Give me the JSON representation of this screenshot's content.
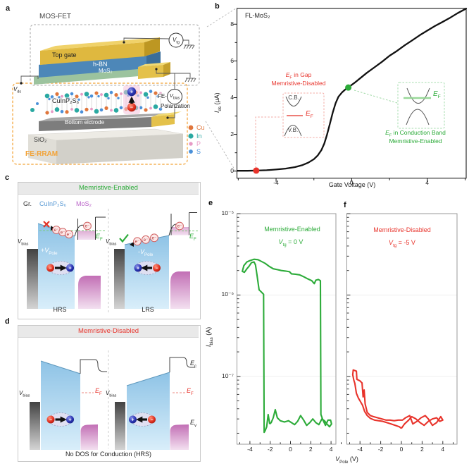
{
  "syms": {
    "E": "E",
    "F": "F",
    "V": "V",
    "I": "I",
    "ds": "ds",
    "tg": "tg",
    "bias": "bias",
    "Pole": "Pole",
    "plus": "+",
    "minus": "-",
    "plus_sign": "+",
    "minus_sign": "−",
    "electron": "e⁻"
  },
  "colors": {
    "green": "#2cab39",
    "red": "#e8332b",
    "orange": "#f2a235",
    "blue_label": "#5b9bd5",
    "purple_label": "#bb65c9",
    "curve_black": "#111111",
    "band_blue": "#93c6e6",
    "pink_band": "#c873ba",
    "atom_Cu": "#e0763c",
    "atom_In": "#2aa9a2",
    "atom_P": "#e79ac6",
    "atom_S": "#4a90d9"
  },
  "panels": {
    "a": {
      "letter": "a",
      "mosfet": "MOS-FET",
      "fe_rram": "FE-RRAM",
      "top_gate": "Top gate",
      "hbn": "h-BN",
      "mos2": "MoS₂",
      "cips": "CuInP₂S₆",
      "fe_line1": "FE-",
      "fe_line2": "Polarization",
      "bottom_electrode": "Bottom elctrode",
      "sio2": "SiO₂",
      "legend": [
        {
          "name": "Cu",
          "color": "#e0763c"
        },
        {
          "name": "In",
          "color": "#2aa9a2"
        },
        {
          "name": "P",
          "color": "#e79ac6"
        },
        {
          "name": "S",
          "color": "#4a90d9"
        }
      ]
    },
    "b": {
      "letter": "b",
      "red_ann": {
        "rest1": " in Gap",
        "line2": "Memristive-Disabled",
        "cb": "C.B.",
        "vb": "V.B."
      },
      "green_ann": {
        "rest1": " in Conduction Band",
        "line2": "Memristive-Enabled"
      }
    },
    "c": {
      "letter": "c",
      "header": "Memristive-Enabled",
      "legend_gr": "Gr.",
      "legend_cips": "CuInP₂S₆",
      "legend_mos2": "MoS₂",
      "hrs": "HRS",
      "lrs": "LRS",
      "hrs_sign": "+",
      "lrs_sign": "-"
    },
    "d": {
      "letter": "d",
      "header": "Memristive-Disabled",
      "caption": "No DOS for Conduction (HRS)",
      "ec_sub": "c",
      "ev_sub": "v"
    },
    "e": {
      "letter": "e",
      "cond_rest": " = 0 V",
      "ylabel_rest": " (A)"
    },
    "f": {
      "letter": "f",
      "cond_rest": " = -5 V",
      "xlabel_rest": " (V)"
    }
  },
  "chart_data": {
    "b": {
      "type": "line",
      "title": "FL-MoS₂",
      "xlabel": "Gate Voltage (V)",
      "ylabel": "Ids (μA)",
      "xlim": [
        -6.05,
        6.1
      ],
      "ylim": [
        -0.4,
        8.9
      ],
      "xticks": [
        -4,
        0,
        4
      ],
      "xtick_labels": [
        "-4",
        "0",
        "4"
      ],
      "xticks_minor": [
        -6,
        -2,
        2,
        6
      ],
      "yticks": [
        0,
        2,
        4,
        6,
        8
      ],
      "ytick_labels": [
        "0",
        "2",
        "4",
        "6",
        "8"
      ],
      "yticks_minor": [
        1,
        3,
        5,
        7
      ],
      "points": [
        [
          -6.05,
          0.02
        ],
        [
          -5.5,
          0.02
        ],
        [
          -5.05,
          0.03
        ],
        [
          -4.5,
          0.05
        ],
        [
          -4,
          0.09
        ],
        [
          -3.5,
          0.14
        ],
        [
          -3,
          0.22
        ],
        [
          -2.6,
          0.33
        ],
        [
          -2.3,
          0.46
        ],
        [
          -2,
          0.65
        ],
        [
          -1.8,
          0.85
        ],
        [
          -1.6,
          1.15
        ],
        [
          -1.45,
          1.5
        ],
        [
          -1.3,
          2
        ],
        [
          -1.15,
          2.6
        ],
        [
          -1,
          3.2
        ],
        [
          -0.85,
          3.7
        ],
        [
          -0.7,
          4.05
        ],
        [
          -0.5,
          4.3
        ],
        [
          -0.3,
          4.48
        ],
        [
          -0.1,
          4.62
        ],
        [
          0.2,
          4.85
        ],
        [
          0.5,
          5.1
        ],
        [
          0.8,
          5.35
        ],
        [
          1.2,
          5.65
        ],
        [
          1.6,
          5.95
        ],
        [
          2,
          6.28
        ],
        [
          2.4,
          6.55
        ],
        [
          2.8,
          6.85
        ],
        [
          3.2,
          7.12
        ],
        [
          3.6,
          7.4
        ],
        [
          4,
          7.65
        ],
        [
          4.4,
          7.9
        ],
        [
          4.8,
          8.12
        ],
        [
          5.2,
          8.35
        ],
        [
          5.6,
          8.6
        ],
        [
          6.05,
          8.85
        ]
      ],
      "red_point": [
        -5.05,
        0.03
      ],
      "green_point": [
        -0.18,
        4.55
      ]
    },
    "e": {
      "type": "line",
      "yscale": "log",
      "series_label": "Memristive-Enabled",
      "gate_voltage": "0 V",
      "color": "#2cab39",
      "xlabel": "VPole (V)",
      "ylabel": "Ibias (A)",
      "ylim_exp": [
        -7.83,
        -5
      ],
      "ytick_labels": [
        "10⁻⁵",
        "10⁻⁶",
        "10⁻⁷"
      ],
      "xticks": [
        -4,
        -2,
        0,
        2,
        4
      ],
      "xtick_labels": [
        "-4",
        "-2",
        "0",
        "2",
        "4"
      ],
      "points": [
        [
          -2.05,
          2.6e-08
        ],
        [
          -2.2,
          3.4e-08
        ],
        [
          -2.35,
          2.4e-08
        ],
        [
          -2.5,
          2.15e-08
        ],
        [
          -2.6,
          2.05e-08
        ],
        [
          -2.65,
          1.02e-06
        ],
        [
          -2.85,
          1.08e-06
        ],
        [
          -3.1,
          1.16e-06
        ],
        [
          -3.3,
          1.75e-06
        ],
        [
          -3.45,
          2.35e-06
        ],
        [
          -3.6,
          2.55e-06
        ],
        [
          -3.85,
          2.5e-06
        ],
        [
          -4.1,
          2.25e-06
        ],
        [
          -4.3,
          2.1e-06
        ],
        [
          -4.55,
          1.9e-06
        ],
        [
          -4.75,
          1.95e-06
        ],
        [
          -4.6,
          2.3e-06
        ],
        [
          -4.3,
          2.55e-06
        ],
        [
          -4,
          2.65e-06
        ],
        [
          -3.6,
          2.75e-06
        ],
        [
          -3.2,
          2.72e-06
        ],
        [
          -2.9,
          2.6e-06
        ],
        [
          -2.5,
          2.45e-06
        ],
        [
          -2.1,
          2.25e-06
        ],
        [
          -1.7,
          2.1e-06
        ],
        [
          -1.3,
          2.05e-06
        ],
        [
          -0.9,
          2e-06
        ],
        [
          -0.5,
          1.97e-06
        ],
        [
          -0.1,
          1.93e-06
        ],
        [
          0.1,
          1.82e-06
        ],
        [
          0.5,
          1.8e-06
        ],
        [
          0.9,
          1.77e-06
        ],
        [
          1.3,
          1.68e-06
        ],
        [
          1.7,
          1.58e-06
        ],
        [
          2.1,
          1.5e-06
        ],
        [
          2.35,
          1.38e-06
        ],
        [
          2.5,
          1.52e-06
        ],
        [
          2.75,
          1.55e-06
        ],
        [
          2.95,
          1.5e-06
        ],
        [
          3,
          3.4e-08
        ],
        [
          3.2,
          2.9e-08
        ],
        [
          3.45,
          2.5e-08
        ],
        [
          3.7,
          2.9e-08
        ],
        [
          3.95,
          2.9e-08
        ],
        [
          4.05,
          2.6e-08
        ],
        [
          3.85,
          2.4e-08
        ],
        [
          3.6,
          2.6e-08
        ],
        [
          3.35,
          2.85e-08
        ],
        [
          3.1,
          3e-08
        ],
        [
          2.8,
          2.55e-08
        ],
        [
          2.5,
          2.7e-08
        ],
        [
          2.2,
          3e-08
        ],
        [
          1.9,
          2.7e-08
        ],
        [
          1.6,
          2.5e-08
        ],
        [
          1.3,
          2.9e-08
        ],
        [
          1,
          3.3e-08
        ],
        [
          0.7,
          2.8e-08
        ],
        [
          0.4,
          2.55e-08
        ],
        [
          0.1,
          2.7e-08
        ],
        [
          -0.2,
          2.85e-08
        ],
        [
          -0.6,
          2.75e-08
        ],
        [
          -1,
          2.85e-08
        ],
        [
          -1.3,
          3.1e-08
        ],
        [
          -1.5,
          3.9e-08
        ],
        [
          -1.7,
          3.1e-08
        ],
        [
          -1.9,
          2.7e-08
        ],
        [
          -2.05,
          2.6e-08
        ]
      ]
    },
    "f": {
      "type": "line",
      "yscale": "log",
      "series_label": "Memristive-Disabled",
      "gate_voltage": "-5 V",
      "color": "#e8332b",
      "xticks": [
        -4,
        -2,
        0,
        2,
        4
      ],
      "xtick_labels": [
        "-4",
        "-2",
        "0",
        "2",
        "4"
      ],
      "points": [
        [
          0,
          2.3e-08
        ],
        [
          0.3,
          2.6e-08
        ],
        [
          0.7,
          2.9e-08
        ],
        [
          1,
          3.2e-08
        ],
        [
          1.4,
          3e-08
        ],
        [
          1.8,
          2.7e-08
        ],
        [
          2.2,
          2.5e-08
        ],
        [
          2.6,
          2.8e-08
        ],
        [
          3,
          3e-08
        ],
        [
          3.4,
          3.1e-08
        ],
        [
          3.7,
          2.8e-08
        ],
        [
          4,
          2.9e-08
        ],
        [
          3.8,
          3.2e-08
        ],
        [
          3.4,
          2.7e-08
        ],
        [
          3,
          2.5e-08
        ],
        [
          2.6,
          3e-08
        ],
        [
          2.3,
          3.3e-08
        ],
        [
          1.9,
          3.1e-08
        ],
        [
          1.5,
          2.8e-08
        ],
        [
          1.1,
          2.6e-08
        ],
        [
          0.8,
          3.3e-08
        ],
        [
          0.4,
          3.1e-08
        ],
        [
          0.1,
          2.9e-08
        ],
        [
          -0.3,
          2.9e-08
        ],
        [
          -0.7,
          2.85e-08
        ],
        [
          -1.1,
          2.9e-08
        ],
        [
          -1.5,
          2.9e-08
        ],
        [
          -1.9,
          3e-08
        ],
        [
          -2.3,
          3.1e-08
        ],
        [
          -2.7,
          3.2e-08
        ],
        [
          -3,
          3.3e-08
        ],
        [
          -3.3,
          3.6e-08
        ],
        [
          -3.5,
          4.6e-08
        ],
        [
          -3.6,
          6.8e-08
        ],
        [
          -3.7,
          5.6e-08
        ],
        [
          -3.8,
          8.3e-08
        ],
        [
          -4,
          8.8e-08
        ],
        [
          -4.3,
          9.2e-08
        ],
        [
          -4.35,
          1.16e-07
        ],
        [
          -4.65,
          1.2e-07
        ],
        [
          -4.7,
          1.05e-07
        ],
        [
          -4.6,
          9e-08
        ],
        [
          -4.5,
          8.2e-08
        ],
        [
          -4.35,
          6.2e-08
        ],
        [
          -4.15,
          5.4e-08
        ],
        [
          -3.95,
          4.9e-08
        ],
        [
          -3.75,
          4.4e-08
        ],
        [
          -3.55,
          3.7e-08
        ],
        [
          -3.3,
          3.3e-08
        ],
        [
          -3,
          3.05e-08
        ],
        [
          -2.6,
          2.9e-08
        ],
        [
          -2.2,
          2.85e-08
        ],
        [
          -1.8,
          2.8e-08
        ],
        [
          -1.4,
          2.7e-08
        ],
        [
          -1,
          2.6e-08
        ],
        [
          -0.6,
          2.5e-08
        ],
        [
          -0.2,
          2.4e-08
        ],
        [
          0,
          2.3e-08
        ]
      ]
    }
  }
}
